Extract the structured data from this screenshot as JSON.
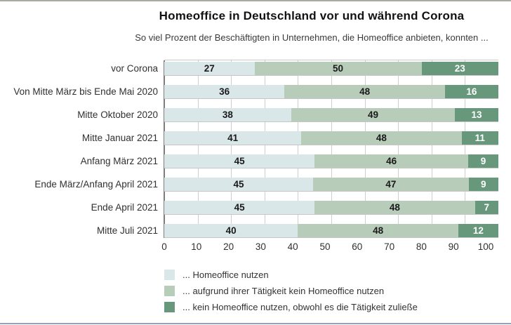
{
  "header": {
    "title": "Homeoffice in Deutschland vor und während Corona",
    "subtitle": "So viel Prozent der Beschäftigten in Unternehmen, die Homeoffice anbieten, konnten ..."
  },
  "chart_data": {
    "type": "bar",
    "orientation": "horizontal",
    "stacked": true,
    "title": "Homeoffice in Deutschland vor und während Corona",
    "subtitle": "So viel Prozent der Beschäftigten in Unternehmen, die Homeoffice anbieten, konnten ...",
    "xlabel": "",
    "ylabel": "",
    "xlim": [
      0,
      100
    ],
    "x_ticks": [
      0,
      10,
      20,
      30,
      40,
      50,
      60,
      70,
      80,
      90,
      100
    ],
    "grid": true,
    "legend_position": "bottom",
    "categories": [
      "vor Corona",
      "Von Mitte März bis Ende Mai 2020",
      "Mitte Oktober 2020",
      "Mitte Januar 2021",
      "Anfang März 2021",
      "Ende März/Anfang April 2021",
      "Ende April 2021",
      "Mitte Juli 2021"
    ],
    "series": [
      {
        "name": "... Homeoffice nutzen",
        "key": "homeoffice-nutzen",
        "color": "#d9e7e9",
        "label_color": "#1a1a1a",
        "values": [
          27,
          36,
          38,
          41,
          45,
          45,
          45,
          40
        ]
      },
      {
        "name": "... aufgrund ihrer Tätigkeit kein Homeoffice nutzen",
        "key": "taetigkeit-kein-homeoffice",
        "color": "#b8ccba",
        "label_color": "#1a1a1a",
        "values": [
          50,
          48,
          49,
          48,
          46,
          47,
          48,
          48
        ]
      },
      {
        "name": "... kein Homeoffice nutzen, obwohl es die Tätigkeit zuließe",
        "key": "kein-homeoffice-trotz-taetigkeit",
        "color": "#67987c",
        "label_color": "#ffffff",
        "values": [
          23,
          16,
          13,
          11,
          9,
          9,
          7,
          12
        ]
      }
    ]
  },
  "colors": {
    "top_rule": "#a7aba1",
    "bottom_rule": "#93a2b6",
    "gridline": "#cfcfcf",
    "axis_line": "#7d7d7d",
    "row_underline": "#c6c6c6"
  }
}
